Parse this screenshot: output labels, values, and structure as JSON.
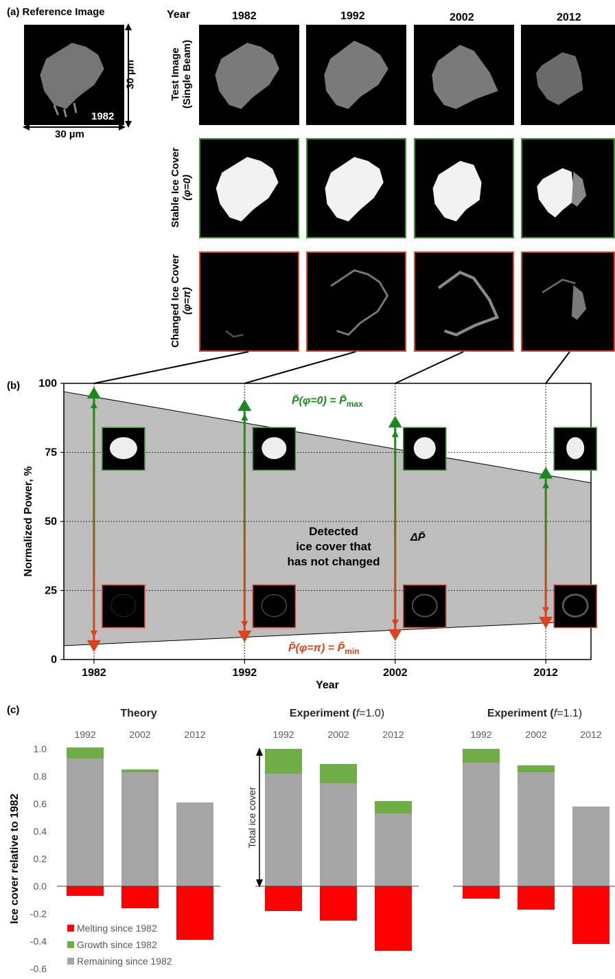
{
  "panel_a": {
    "tag": "(a)",
    "ref_title": "Reference Image",
    "ref_year": "1982",
    "scale_h": "30 µm",
    "scale_v": "30 µm",
    "year_header": "Year",
    "years": [
      "1982",
      "1992",
      "2002",
      "2012"
    ],
    "row_labels": [
      {
        "line1": "Test Image",
        "line2": "(Single Beam)"
      },
      {
        "line1": "Stable Ice Cover",
        "line2": "(φ=0)"
      },
      {
        "line1": "Changed Ice Cover",
        "line2": "(φ=π)"
      }
    ]
  },
  "chart_data": [
    {
      "type": "area",
      "panel_tag": "(b)",
      "xlabel": "Year",
      "ylabel": "Normalized Power, %",
      "x_ticks": [
        "1982",
        "1992",
        "2002",
        "2012"
      ],
      "yticks": [
        0,
        25,
        50,
        75,
        100
      ],
      "ylim": [
        0,
        100
      ],
      "xlim": [
        1980,
        2015
      ],
      "grid": "dotted horizontal at 25, 50, 75",
      "upper_boundary": {
        "x": [
          1980,
          2015
        ],
        "y": [
          97,
          64
        ]
      },
      "lower_boundary": {
        "x": [
          1980,
          2015
        ],
        "y": [
          5,
          14
        ]
      },
      "max_points": {
        "x": [
          1982,
          1992,
          2002,
          2012
        ],
        "y": [
          96.5,
          92,
          86,
          67.5
        ]
      },
      "min_points": {
        "x": [
          1982,
          1992,
          2002,
          2012
        ],
        "y": [
          5,
          8.5,
          9,
          13.5
        ]
      },
      "max_label": "P̃(φ=0) = P̃",
      "max_label_sub": "max",
      "min_label": "P̃(φ=π) = P̃",
      "min_label_sub": "min",
      "delta_label": "ΔP̃",
      "region_text": [
        "Detected",
        "ice cover that",
        "has not changed"
      ],
      "colors": {
        "max": "#1a8a1a",
        "min": "#e0401a",
        "fill": "#bdbdbd"
      }
    },
    {
      "type": "bar",
      "panel_tag": "(c)",
      "ylabel": "Ice cover relative to 1982",
      "yticks": [
        "1.0",
        "0.8",
        "0.6",
        "0.4",
        "0.2",
        "0.0",
        "-0.2",
        "-0.4",
        "-0.6"
      ],
      "ylim": [
        -0.6,
        1.0
      ],
      "categories": [
        "1992",
        "2002",
        "2012"
      ],
      "legend": [
        "Melting since 1982",
        "Growth since 1982",
        "Remaining since 1982"
      ],
      "colors": {
        "melting": "#ff0000",
        "growth": "#70ad47",
        "remaining": "#a5a5a5"
      },
      "total_label": "Total ice cover",
      "groups": [
        {
          "title": "Theory",
          "title_f": "",
          "series": [
            {
              "name": "Remaining since 1982",
              "values": [
                0.93,
                0.83,
                0.61
              ]
            },
            {
              "name": "Growth since 1982",
              "values": [
                0.08,
                0.02,
                0.0
              ]
            },
            {
              "name": "Melting since 1982",
              "values": [
                -0.07,
                -0.16,
                -0.39
              ]
            }
          ]
        },
        {
          "title": "Experiment (",
          "title_f": "f",
          "title_tail": "=1.0)",
          "series": [
            {
              "name": "Remaining since 1982",
              "values": [
                0.82,
                0.75,
                0.53
              ]
            },
            {
              "name": "Growth since 1982",
              "values": [
                0.18,
                0.14,
                0.09
              ]
            },
            {
              "name": "Melting since 1982",
              "values": [
                -0.18,
                -0.25,
                -0.47
              ]
            }
          ]
        },
        {
          "title": "Experiment (",
          "title_f": "f",
          "title_tail": "=1.1)",
          "series": [
            {
              "name": "Remaining since 1982",
              "values": [
                0.9,
                0.83,
                0.58
              ]
            },
            {
              "name": "Growth since 1982",
              "values": [
                0.1,
                0.05,
                0.0
              ]
            },
            {
              "name": "Melting since 1982",
              "values": [
                -0.09,
                -0.17,
                -0.42
              ]
            }
          ]
        }
      ]
    }
  ]
}
